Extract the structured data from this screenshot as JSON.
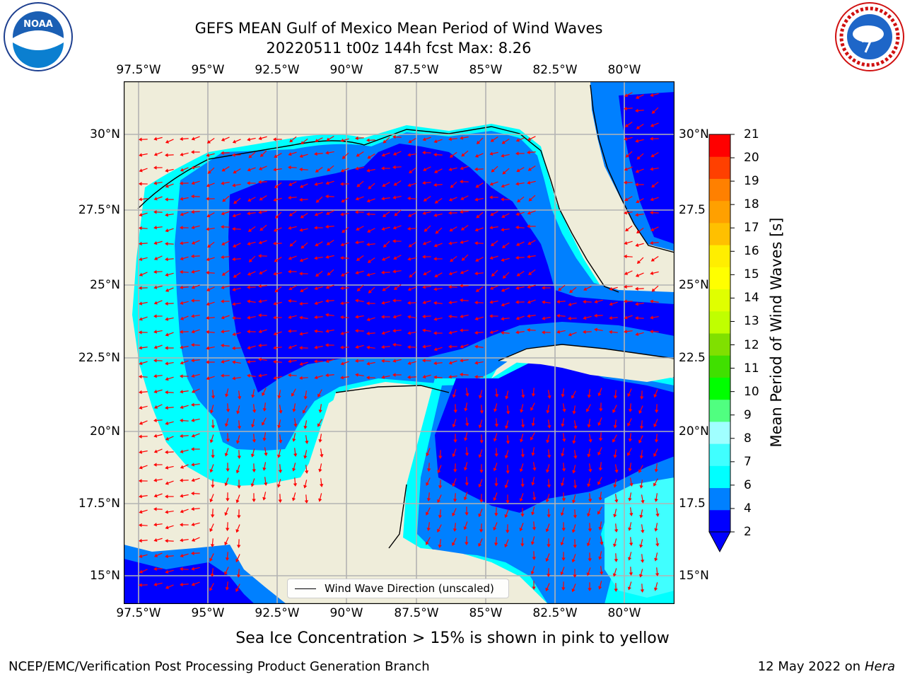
{
  "header": {
    "title_line1": "GEFS MEAN Gulf of Mexico Mean Period of Wind Waves",
    "title_line2": "20220511 t00z 144h fcst   Max: 8.26"
  },
  "axes": {
    "lon_ticks": [
      "97.5°W",
      "95°W",
      "92.5°W",
      "90°W",
      "87.5°W",
      "85°W",
      "82.5°W",
      "80°W"
    ],
    "lat_ticks": [
      "30°N",
      "27.5°N",
      "25°N",
      "22.5°N",
      "20°N",
      "17.5°N",
      "15°N"
    ],
    "lat_ticks_right": [
      "30°N",
      "27.5",
      "25°N",
      "22.5",
      "20°N",
      "17.5",
      "15°N"
    ]
  },
  "colorbar": {
    "label": "Mean Period of Wind Waves [s]",
    "ticks": [
      "21",
      "20",
      "19",
      "18",
      "17",
      "16",
      "15",
      "14",
      "13",
      "12",
      "11",
      "10",
      "9",
      "8",
      "7",
      "6",
      "4",
      "2"
    ],
    "colors": [
      "#0000ff",
      "#0080ff",
      "#00ffff",
      "#40ffff",
      "#a0ffff",
      "#50ff80",
      "#00ff00",
      "#40e000",
      "#80e000",
      "#c0ff00",
      "#e0ff00",
      "#ffff00",
      "#ffee00",
      "#ffc000",
      "#ffa000",
      "#ff8000",
      "#ff4000",
      "#ff0000"
    ]
  },
  "legend": {
    "label": "Wind Wave Direction (unscaled)"
  },
  "footer": {
    "note": "Sea Ice Concentration > 15% is shown in pink to yellow",
    "left": "NCEP/EMC/Verification Post Processing Product Generation Branch",
    "right_date": "12 May 2022 on",
    "right_host": "Hera"
  },
  "logos": {
    "left": "noaa-logo",
    "right": "nws-logo"
  },
  "colors": {
    "land": "#efedda",
    "water_low": "#0000ff",
    "water_mid": "#0080ff",
    "water_high": "#00ffff",
    "arrows": "#ff0000"
  }
}
